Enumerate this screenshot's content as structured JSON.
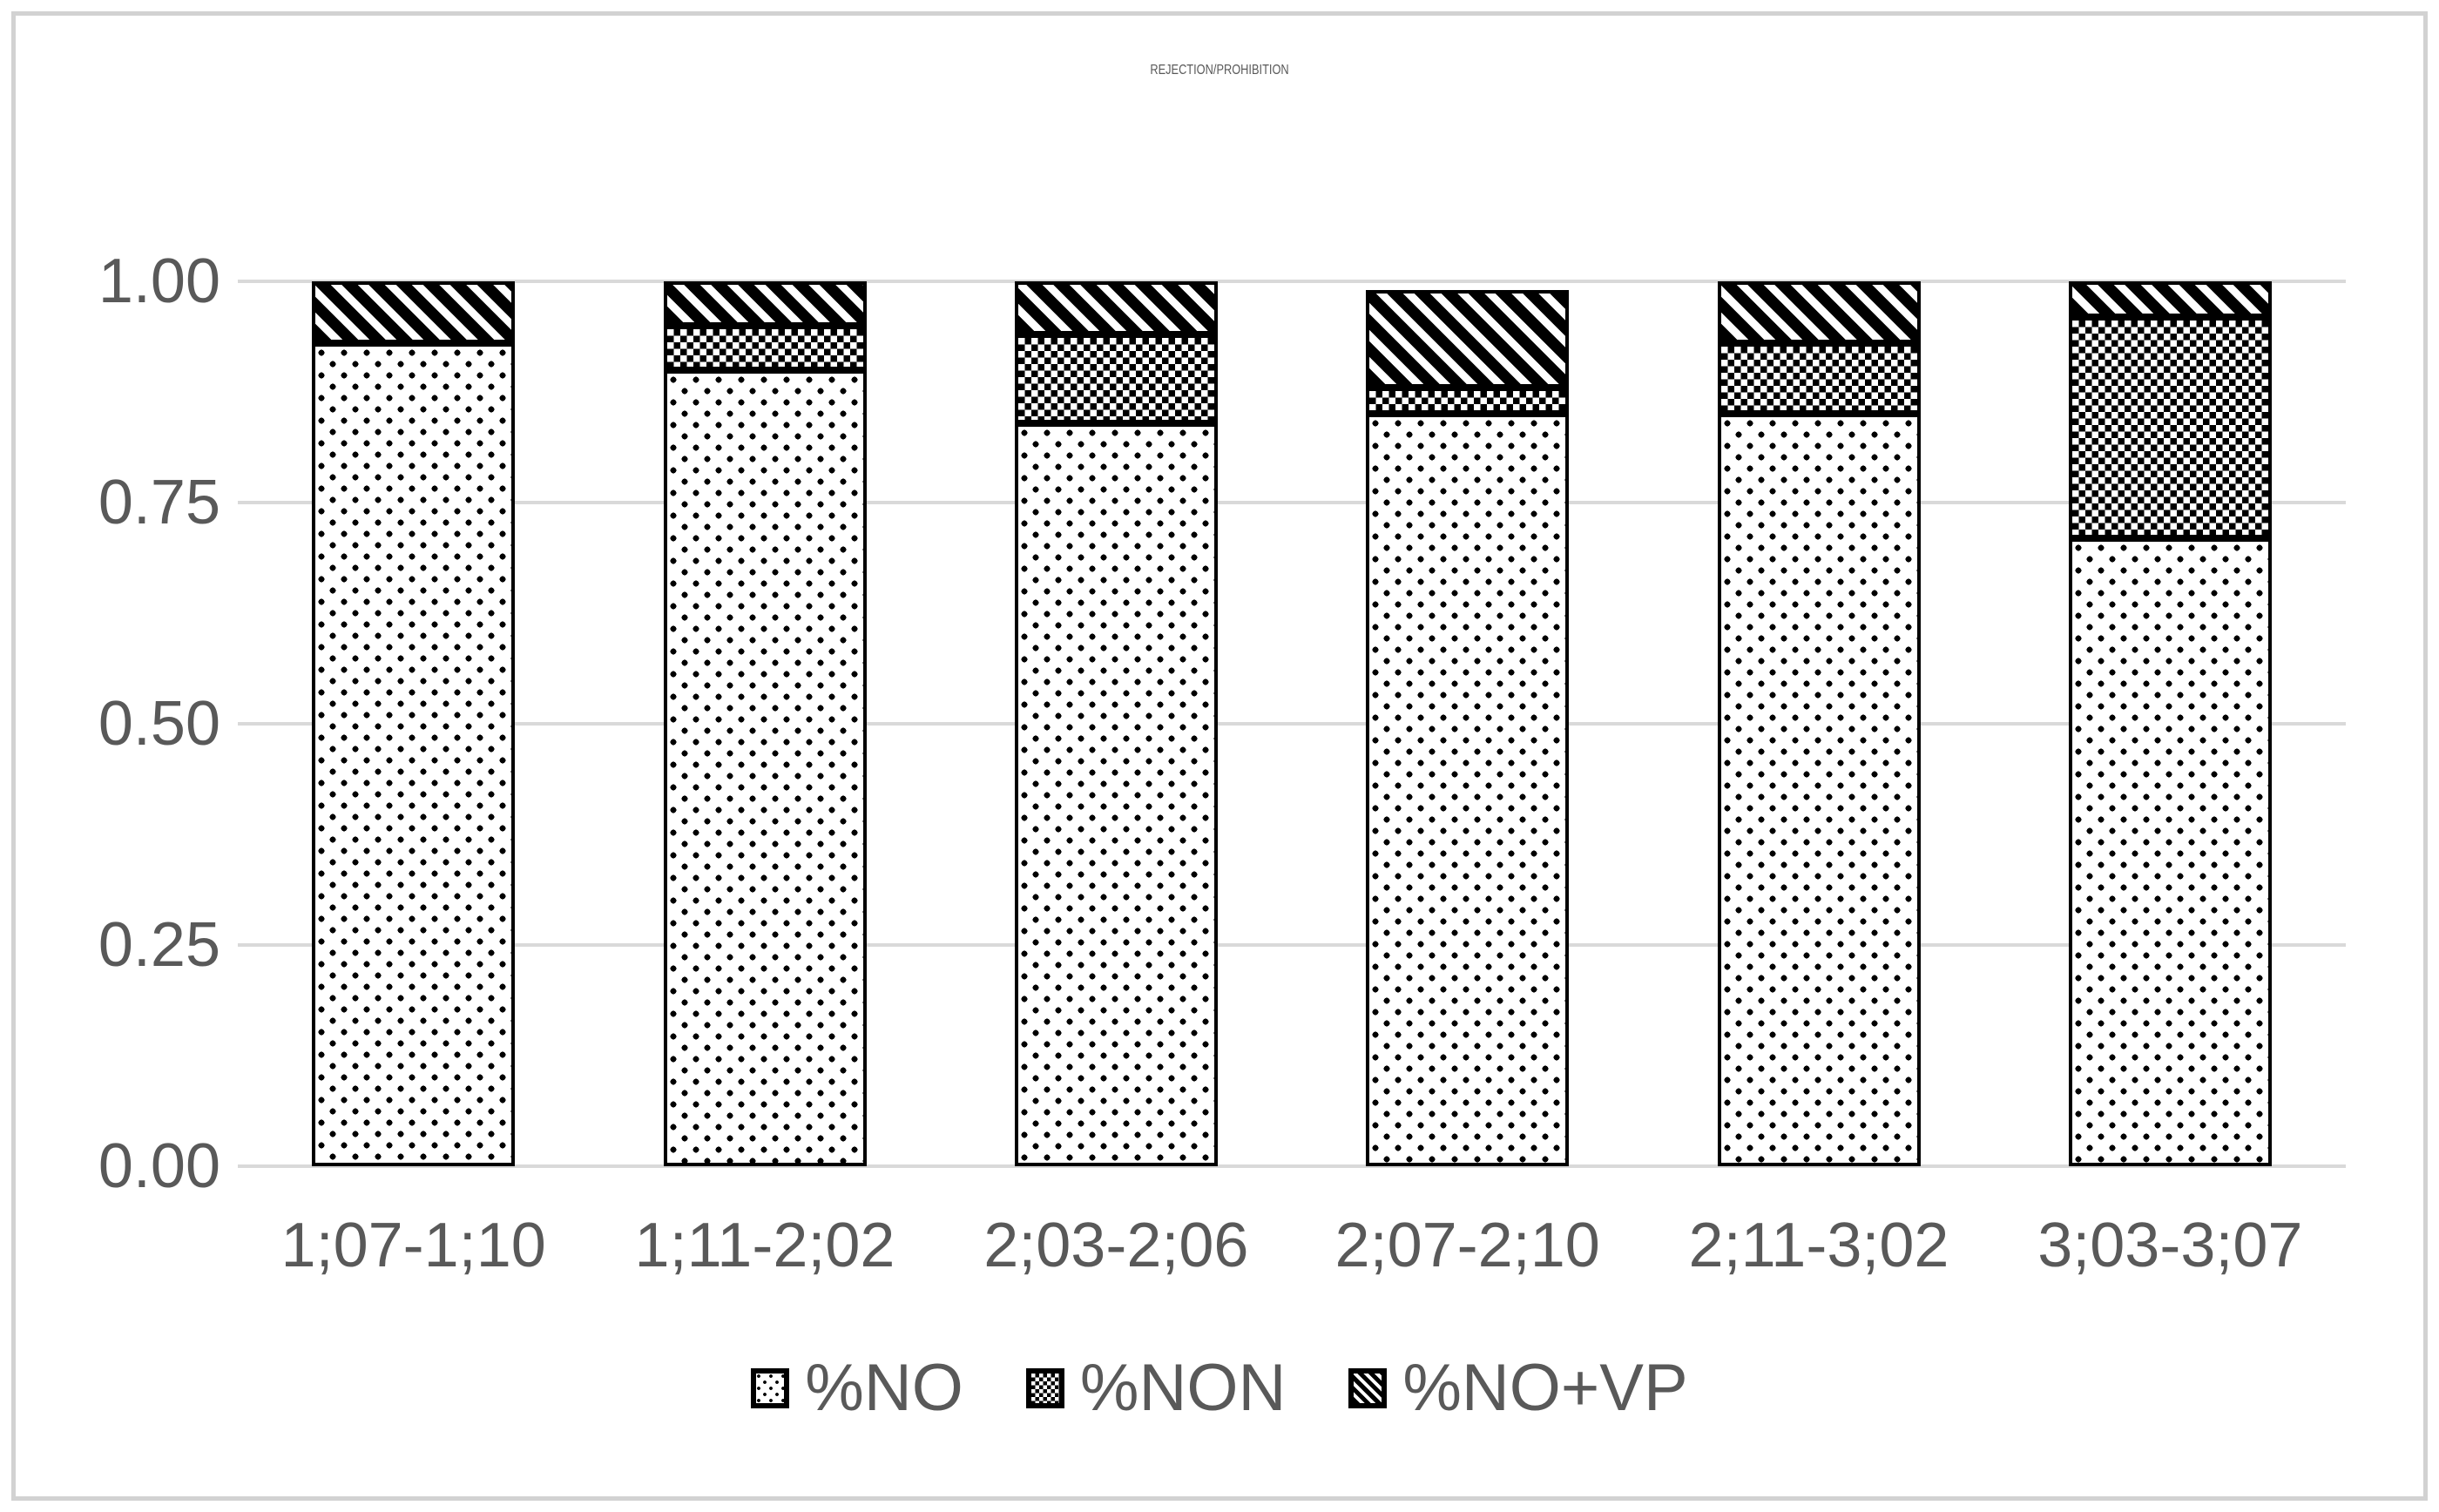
{
  "title": "REJECTION/PROHIBITION",
  "colors": {
    "text": "#595959",
    "gridline": "#d9d9d9",
    "frame_border": "#d2d2d2",
    "pattern_ink": "#000000",
    "pattern_bg": "#ffffff"
  },
  "chart_data": {
    "type": "bar",
    "stacked": true,
    "title": "REJECTION/PROHIBITION",
    "categories": [
      "1;07-1;10",
      "1;11-2;02",
      "2;03-2;06",
      "2;07-2;10",
      "2;11-3;02",
      "3;03-3;07"
    ],
    "series": [
      {
        "name": "%NO",
        "pattern": "dots",
        "values": [
          0.93,
          0.9,
          0.84,
          0.85,
          0.85,
          0.71
        ]
      },
      {
        "name": "%NON",
        "pattern": "checker",
        "values": [
          0.0,
          0.05,
          0.1,
          0.03,
          0.08,
          0.25
        ]
      },
      {
        "name": "%NO+VP",
        "pattern": "diag",
        "values": [
          0.07,
          0.05,
          0.06,
          0.11,
          0.07,
          0.04
        ]
      }
    ],
    "stack_totals": [
      1.0,
      1.0,
      1.0,
      0.99,
      1.0,
      1.0
    ],
    "xlabel": "",
    "ylabel": "",
    "ylim": [
      0.0,
      1.0
    ],
    "y_ticks": [
      "0.00",
      "0.25",
      "0.50",
      "0.75",
      "1.00"
    ],
    "grid": true,
    "legend_position": "bottom",
    "legend": [
      "%NO",
      "%NON",
      "%NO+VP"
    ]
  }
}
